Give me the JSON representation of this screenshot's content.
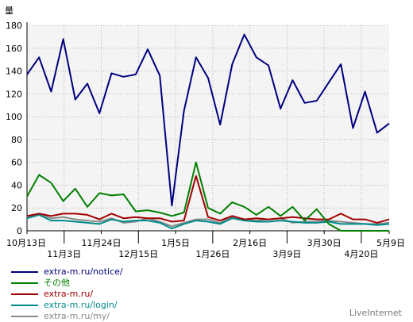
{
  "chart_data": {
    "type": "line",
    "ylabel": "量",
    "ylim": [
      0,
      180
    ],
    "yticks": [
      0,
      20,
      40,
      60,
      80,
      100,
      120,
      140,
      160,
      180
    ],
    "grid": true,
    "legend": "bottom-left",
    "x_index_range": [
      0,
      39
    ],
    "xticks": [
      {
        "i": 0,
        "label": "10月13日",
        "row": 1
      },
      {
        "i": 4,
        "label": "11月3日",
        "row": 2
      },
      {
        "i": 8,
        "label": "11月24日",
        "row": 1
      },
      {
        "i": 12,
        "label": "12月15日",
        "row": 2
      },
      {
        "i": 16,
        "label": "1月5日",
        "row": 1
      },
      {
        "i": 20,
        "label": "1月26日",
        "row": 2
      },
      {
        "i": 24,
        "label": "2月16日",
        "row": 1
      },
      {
        "i": 28,
        "label": "3月9日",
        "row": 2
      },
      {
        "i": 32,
        "label": "3月30日",
        "row": 1
      },
      {
        "i": 36,
        "label": "4月20日",
        "row": 2
      },
      {
        "i": 39,
        "label": "5月9日",
        "row": 1
      }
    ],
    "series": [
      {
        "name": "extra-m.ru/notice/",
        "color": "#00007f",
        "values": [
          137,
          152,
          122,
          168,
          115,
          129,
          103,
          138,
          135,
          137,
          159,
          136,
          22,
          105,
          152,
          134,
          93,
          146,
          172,
          152,
          145,
          107,
          132,
          112,
          114,
          130,
          146,
          90,
          122,
          86,
          94
        ]
      },
      {
        "name": "その他",
        "color": "#008000",
        "values": [
          30,
          49,
          42,
          26,
          37,
          21,
          33,
          31,
          32,
          17,
          18,
          16,
          13,
          16,
          60,
          20,
          15,
          25,
          21,
          14,
          21,
          13,
          21,
          9,
          19,
          6,
          0,
          0,
          0,
          0,
          0
        ]
      },
      {
        "name": "extra-m.ru/",
        "color": "#a00000",
        "values": [
          13,
          15,
          13,
          15,
          15,
          14,
          10,
          15,
          11,
          12,
          11,
          11,
          8,
          9,
          48,
          12,
          9,
          13,
          10,
          11,
          10,
          11,
          12,
          11,
          10,
          10,
          15,
          10,
          10,
          7,
          10
        ]
      },
      {
        "name": "extra-m.ru/login/",
        "color": "#008b8b",
        "values": [
          11,
          14,
          9,
          9,
          8,
          7,
          6,
          10,
          8,
          9,
          9,
          7,
          2,
          6,
          9,
          8,
          6,
          11,
          9,
          8,
          8,
          9,
          8,
          7,
          7,
          8,
          6,
          6,
          6,
          5,
          6
        ]
      },
      {
        "name": "extra-m.ru/my/",
        "color": "#8a8a8a",
        "values": [
          12,
          15,
          11,
          12,
          10,
          9,
          8,
          11,
          7,
          8,
          11,
          8,
          4,
          7,
          10,
          10,
          7,
          12,
          10,
          9,
          10,
          11,
          7,
          8,
          8,
          9,
          8,
          7,
          6,
          6,
          7
        ]
      }
    ]
  },
  "footer": {
    "brand": "LiveInternet"
  }
}
